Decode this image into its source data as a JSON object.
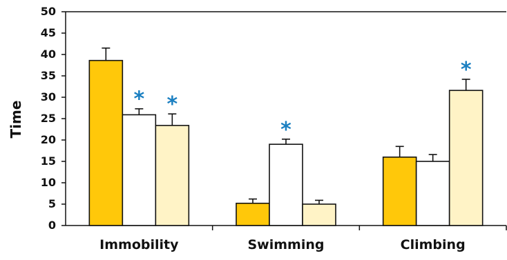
{
  "chart_data": {
    "type": "bar",
    "ylabel": "Time",
    "xlabel": "",
    "ylim": [
      0,
      50
    ],
    "yticks": [
      0,
      5,
      10,
      15,
      20,
      25,
      30,
      35,
      40,
      45,
      50
    ],
    "categories": [
      "Immobility",
      "Swimming",
      "Climbing"
    ],
    "series": [
      {
        "color": "#ffc80a",
        "values": [
          38.6,
          5.2,
          16.0
        ],
        "errors": [
          2.9,
          1.0,
          2.5
        ]
      },
      {
        "color": "#ffffff",
        "values": [
          25.9,
          19.0,
          15.0
        ],
        "errors": [
          1.4,
          1.2,
          1.6
        ]
      },
      {
        "color": "#fff3c6",
        "values": [
          23.4,
          5.0,
          31.6
        ],
        "errors": [
          2.7,
          0.9,
          2.6
        ]
      }
    ],
    "significance": [
      {
        "category": 0,
        "series": 1,
        "label": "*"
      },
      {
        "category": 0,
        "series": 2,
        "label": "*"
      },
      {
        "category": 1,
        "series": 1,
        "label": "*"
      },
      {
        "category": 2,
        "series": 2,
        "label": "*"
      }
    ],
    "star_color": "#1a7fc1",
    "grid": false,
    "legend": "none"
  }
}
